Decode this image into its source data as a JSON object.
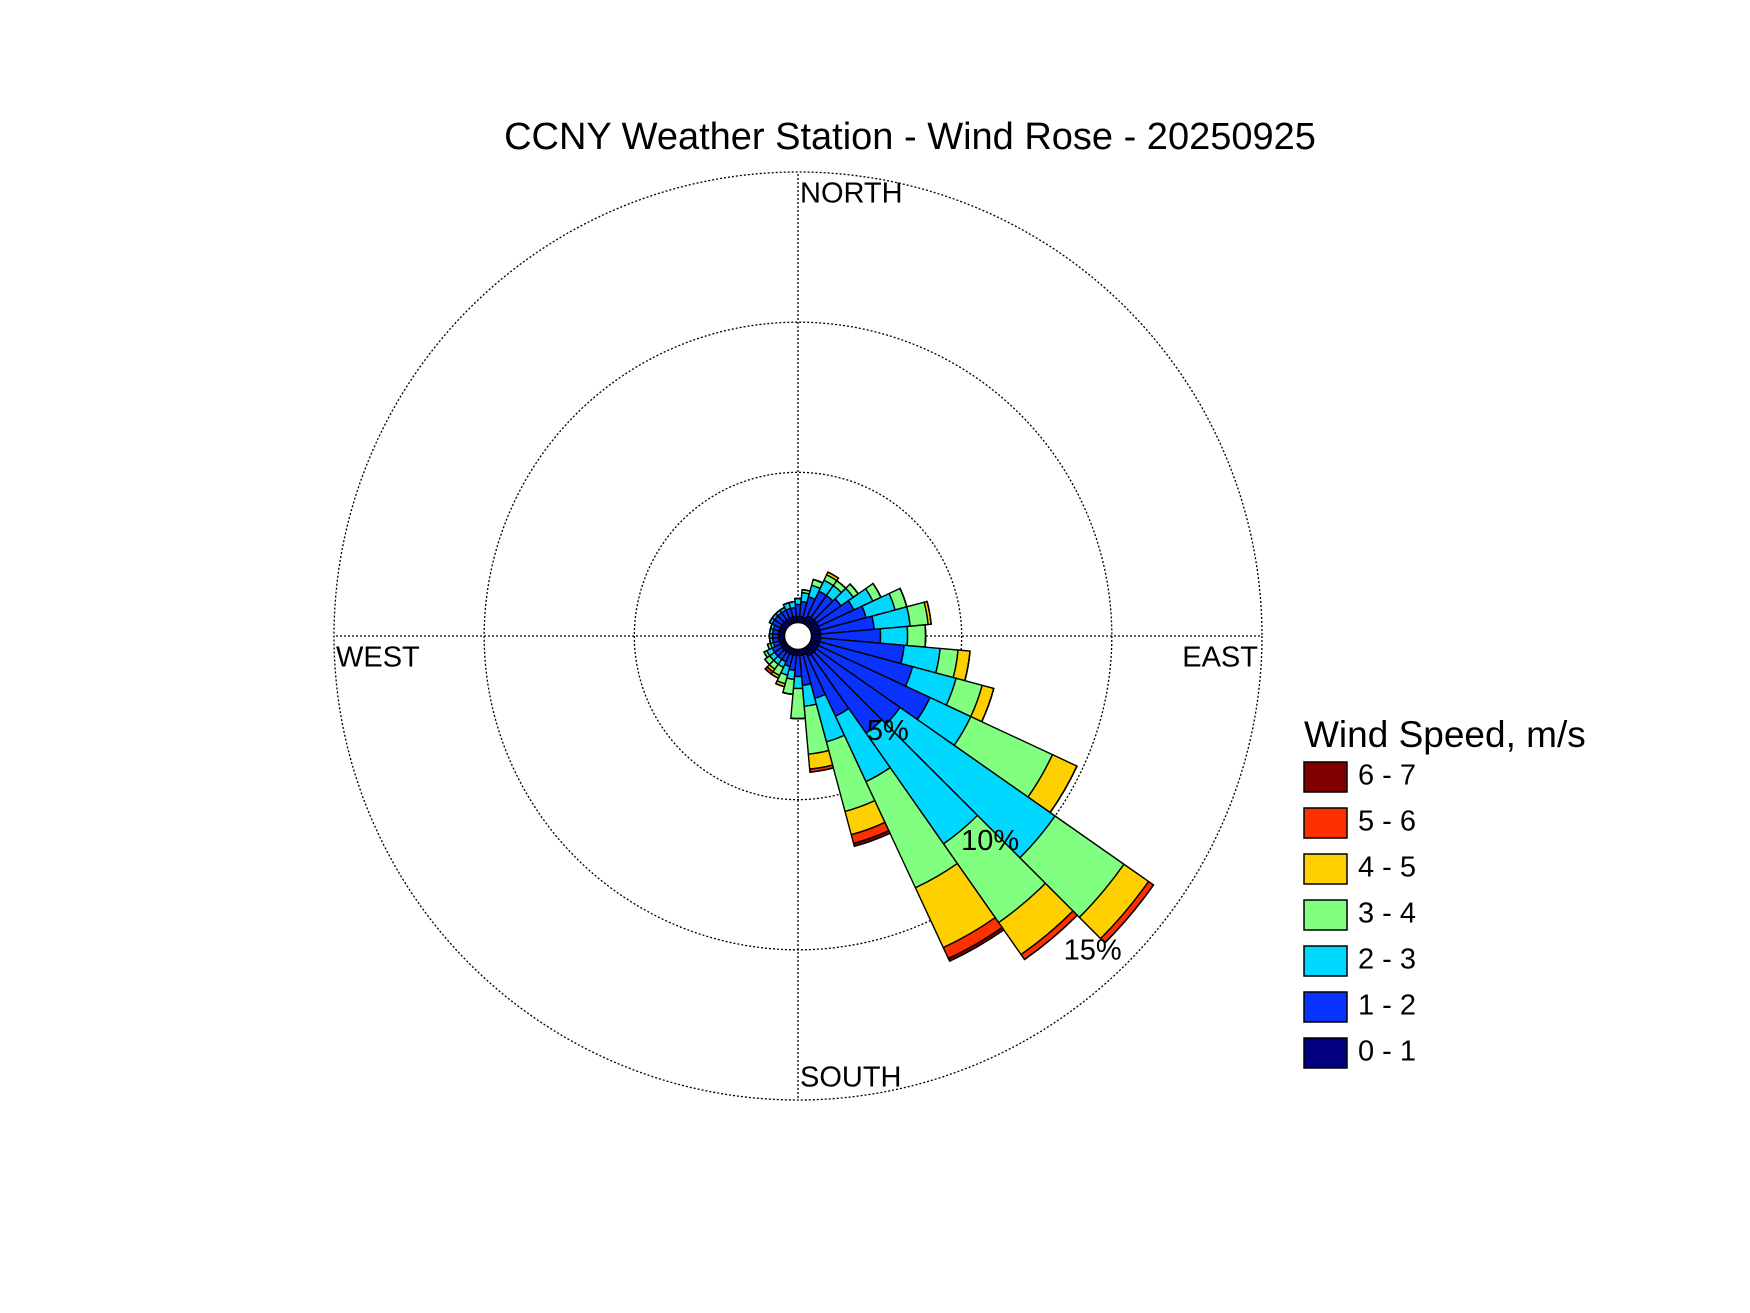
{
  "chart_data": {
    "type": "windrose",
    "title": "CCNY Weather Station - Wind Rose - 20250925",
    "x": [
      0,
      10,
      20,
      30,
      40,
      50,
      60,
      70,
      80,
      90,
      100,
      110,
      120,
      130,
      140,
      150,
      160,
      170,
      180,
      190,
      200,
      210,
      220,
      230,
      240,
      250,
      260,
      270,
      280,
      290,
      300,
      310,
      320,
      330,
      340,
      350
    ],
    "xticks": [
      {
        "value": 0,
        "label": "NORTH"
      },
      {
        "value": 90,
        "label": "EAST"
      },
      {
        "value": 180,
        "label": "SOUTH"
      },
      {
        "value": 270,
        "label": "WEST"
      }
    ],
    "rlim": [
      0,
      15
    ],
    "rticks": [
      {
        "value": 5,
        "label": "5%"
      },
      {
        "value": 10,
        "label": "10%"
      },
      {
        "value": 15,
        "label": "15%"
      }
    ],
    "grid": true,
    "legend_title": "Wind Speed, m/s",
    "series": [
      {
        "name": "0 - 1",
        "color": "#000080",
        "values": [
          0.2,
          0.2,
          0.2,
          0.3,
          0.3,
          0.3,
          0.3,
          0.3,
          0.3,
          0.3,
          0.3,
          0.3,
          0.3,
          0.3,
          0.3,
          0.3,
          0.2,
          0.2,
          0.2,
          0.2,
          0.2,
          0.2,
          0.2,
          0.2,
          0.2,
          0.2,
          0.2,
          0.2,
          0.2,
          0.2,
          0.2,
          0.2,
          0.2,
          0.2,
          0.2,
          0.2
        ]
      },
      {
        "name": "1 - 2",
        "color": "#0a32ff",
        "values": [
          0.4,
          0.5,
          0.7,
          0.9,
          0.9,
          1.0,
          1.3,
          1.6,
          1.8,
          2.0,
          2.8,
          3.2,
          4.1,
          3.4,
          3.2,
          2.2,
          1.5,
          1.0,
          0.7,
          0.5,
          0.4,
          0.3,
          0.3,
          0.3,
          0.3,
          0.2,
          0.2,
          0.2,
          0.2,
          0.2,
          0.3,
          0.3,
          0.3,
          0.3,
          0.3,
          0.3
        ]
      },
      {
        "name": "2 - 3",
        "color": "#00d8ff",
        "values": [
          0.2,
          0.3,
          0.4,
          0.4,
          0.4,
          0.5,
          0.7,
          1.0,
          1.2,
          0.9,
          1.2,
          1.5,
          1.5,
          6.3,
          4.5,
          2.4,
          1.5,
          0.7,
          0.4,
          0.3,
          0.3,
          0.2,
          0.2,
          0.2,
          0.2,
          0.1,
          0.1,
          0.1,
          0.1,
          0.1,
          0.1,
          0.1,
          0.1,
          0.1,
          0.2,
          0.2
        ]
      },
      {
        "name": "3 - 4",
        "color": "#80ff80",
        "values": [
          0,
          0.1,
          0.2,
          0.2,
          0.2,
          0.2,
          0.3,
          0.4,
          0.6,
          0.6,
          0.6,
          0.9,
          3.0,
          2.8,
          3.2,
          3.9,
          2.4,
          1.6,
          1.0,
          0.5,
          0.3,
          0.3,
          0.2,
          0.2,
          0.1,
          0.1,
          0,
          0,
          0,
          0,
          0,
          0,
          0,
          0,
          0,
          0
        ]
      },
      {
        "name": "4 - 5",
        "color": "#ffd000",
        "values": [
          0,
          0,
          0,
          0.1,
          0,
          0,
          0,
          0,
          0.1,
          0,
          0.4,
          0.4,
          0.9,
          1.0,
          1.3,
          2.2,
          0.8,
          0.5,
          0,
          0,
          0.1,
          0.1,
          0.1,
          0,
          0,
          0,
          0,
          0,
          0,
          0,
          0,
          0,
          0,
          0,
          0,
          0
        ]
      },
      {
        "name": "5 - 6",
        "color": "#ff3000",
        "values": [
          0,
          0,
          0,
          0,
          0,
          0,
          0,
          0,
          0,
          0,
          0,
          0,
          0,
          0.2,
          0.2,
          0.4,
          0.3,
          0.1,
          0,
          0,
          0,
          0,
          0.1,
          0,
          0,
          0,
          0,
          0,
          0,
          0,
          0,
          0,
          0,
          0,
          0,
          0
        ]
      },
      {
        "name": "6 - 7",
        "color": "#800000",
        "values": [
          0,
          0,
          0,
          0,
          0,
          0,
          0,
          0,
          0,
          0,
          0,
          0,
          0,
          0,
          0,
          0.1,
          0.1,
          0,
          0,
          0,
          0,
          0,
          0,
          0,
          0,
          0,
          0,
          0,
          0,
          0,
          0,
          0,
          0,
          0,
          0,
          0
        ]
      }
    ]
  }
}
